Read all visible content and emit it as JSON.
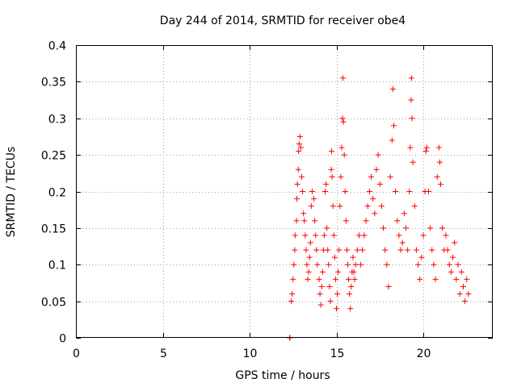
{
  "chart_data": {
    "type": "scatter",
    "title": "Day 244 of 2014, SRMTID for receiver obe4",
    "xlabel": "GPS time / hours",
    "ylabel": "SRMTID / TECUs",
    "xlim": [
      0,
      24
    ],
    "ylim": [
      0,
      0.4
    ],
    "xticks": [
      0,
      5,
      10,
      15,
      20
    ],
    "xtick_labels": [
      "0",
      "5",
      "10",
      "15",
      "20"
    ],
    "yticks": [
      0,
      0.05,
      0.1,
      0.15,
      0.2,
      0.25,
      0.3,
      0.35,
      0.4
    ],
    "ytick_labels": [
      "0",
      "0.05",
      "0.1",
      "0.15",
      "0.2",
      "0.25",
      "0.3",
      "0.35",
      "0.4"
    ],
    "grid": true,
    "marker": "plus",
    "color": "#ff0000",
    "series": [
      {
        "name": "obe4",
        "points": [
          [
            12.3,
            0.0
          ],
          [
            12.32,
            0.0
          ],
          [
            12.4,
            0.05
          ],
          [
            12.45,
            0.06
          ],
          [
            12.5,
            0.08
          ],
          [
            12.55,
            0.1
          ],
          [
            12.6,
            0.12
          ],
          [
            12.62,
            0.14
          ],
          [
            12.7,
            0.16
          ],
          [
            12.72,
            0.19
          ],
          [
            12.75,
            0.21
          ],
          [
            12.8,
            0.23
          ],
          [
            12.82,
            0.255
          ],
          [
            12.85,
            0.265
          ],
          [
            12.9,
            0.275
          ],
          [
            12.95,
            0.26
          ],
          [
            13.0,
            0.22
          ],
          [
            13.05,
            0.2
          ],
          [
            13.1,
            0.17
          ],
          [
            13.15,
            0.16
          ],
          [
            13.2,
            0.14
          ],
          [
            13.25,
            0.12
          ],
          [
            13.3,
            0.1
          ],
          [
            13.35,
            0.08
          ],
          [
            13.4,
            0.09
          ],
          [
            13.45,
            0.11
          ],
          [
            13.5,
            0.13
          ],
          [
            13.55,
            0.18
          ],
          [
            13.6,
            0.2
          ],
          [
            13.7,
            0.19
          ],
          [
            13.75,
            0.16
          ],
          [
            13.8,
            0.14
          ],
          [
            13.85,
            0.12
          ],
          [
            13.9,
            0.1
          ],
          [
            14.0,
            0.08
          ],
          [
            14.05,
            0.06
          ],
          [
            14.1,
            0.045
          ],
          [
            14.15,
            0.07
          ],
          [
            14.2,
            0.09
          ],
          [
            14.25,
            0.12
          ],
          [
            14.3,
            0.14
          ],
          [
            14.35,
            0.2
          ],
          [
            14.4,
            0.21
          ],
          [
            14.45,
            0.15
          ],
          [
            14.5,
            0.12
          ],
          [
            14.55,
            0.1
          ],
          [
            14.6,
            0.07
          ],
          [
            14.65,
            0.05
          ],
          [
            14.7,
            0.23
          ],
          [
            14.72,
            0.255
          ],
          [
            14.75,
            0.22
          ],
          [
            14.8,
            0.18
          ],
          [
            14.85,
            0.14
          ],
          [
            14.9,
            0.11
          ],
          [
            14.95,
            0.08
          ],
          [
            15.0,
            0.04
          ],
          [
            15.05,
            0.06
          ],
          [
            15.1,
            0.09
          ],
          [
            15.15,
            0.12
          ],
          [
            15.2,
            0.18
          ],
          [
            15.25,
            0.22
          ],
          [
            15.3,
            0.26
          ],
          [
            15.35,
            0.3
          ],
          [
            15.37,
            0.355
          ],
          [
            15.4,
            0.295
          ],
          [
            15.45,
            0.25
          ],
          [
            15.5,
            0.2
          ],
          [
            15.55,
            0.16
          ],
          [
            15.6,
            0.12
          ],
          [
            15.65,
            0.1
          ],
          [
            15.7,
            0.08
          ],
          [
            15.75,
            0.06
          ],
          [
            15.8,
            0.04
          ],
          [
            15.85,
            0.07
          ],
          [
            15.9,
            0.09
          ],
          [
            15.95,
            0.11
          ],
          [
            16.0,
            0.09
          ],
          [
            16.05,
            0.08
          ],
          [
            16.1,
            0.1
          ],
          [
            16.2,
            0.12
          ],
          [
            16.3,
            0.14
          ],
          [
            16.4,
            0.1
          ],
          [
            16.5,
            0.12
          ],
          [
            16.6,
            0.14
          ],
          [
            16.7,
            0.16
          ],
          [
            16.8,
            0.18
          ],
          [
            16.9,
            0.2
          ],
          [
            17.0,
            0.22
          ],
          [
            17.1,
            0.19
          ],
          [
            17.2,
            0.17
          ],
          [
            17.3,
            0.23
          ],
          [
            17.4,
            0.25
          ],
          [
            17.5,
            0.21
          ],
          [
            17.6,
            0.18
          ],
          [
            17.7,
            0.15
          ],
          [
            17.8,
            0.12
          ],
          [
            17.9,
            0.1
          ],
          [
            18.0,
            0.07
          ],
          [
            18.1,
            0.22
          ],
          [
            18.2,
            0.27
          ],
          [
            18.25,
            0.34
          ],
          [
            18.3,
            0.29
          ],
          [
            18.4,
            0.2
          ],
          [
            18.5,
            0.16
          ],
          [
            18.6,
            0.14
          ],
          [
            18.7,
            0.12
          ],
          [
            18.8,
            0.13
          ],
          [
            18.9,
            0.17
          ],
          [
            19.0,
            0.15
          ],
          [
            19.1,
            0.12
          ],
          [
            19.2,
            0.2
          ],
          [
            19.25,
            0.26
          ],
          [
            19.3,
            0.325
          ],
          [
            19.32,
            0.355
          ],
          [
            19.35,
            0.3
          ],
          [
            19.4,
            0.24
          ],
          [
            19.5,
            0.18
          ],
          [
            19.6,
            0.12
          ],
          [
            19.7,
            0.1
          ],
          [
            19.8,
            0.08
          ],
          [
            19.9,
            0.11
          ],
          [
            20.0,
            0.14
          ],
          [
            20.1,
            0.2
          ],
          [
            20.15,
            0.255
          ],
          [
            20.2,
            0.26
          ],
          [
            20.3,
            0.2
          ],
          [
            20.4,
            0.15
          ],
          [
            20.5,
            0.12
          ],
          [
            20.6,
            0.1
          ],
          [
            20.7,
            0.08
          ],
          [
            20.8,
            0.22
          ],
          [
            20.9,
            0.26
          ],
          [
            20.95,
            0.24
          ],
          [
            21.0,
            0.21
          ],
          [
            21.1,
            0.15
          ],
          [
            21.2,
            0.12
          ],
          [
            21.3,
            0.14
          ],
          [
            21.4,
            0.12
          ],
          [
            21.5,
            0.1
          ],
          [
            21.6,
            0.09
          ],
          [
            21.7,
            0.11
          ],
          [
            21.8,
            0.13
          ],
          [
            21.9,
            0.08
          ],
          [
            22.0,
            0.1
          ],
          [
            22.1,
            0.06
          ],
          [
            22.2,
            0.09
          ],
          [
            22.3,
            0.07
          ],
          [
            22.4,
            0.05
          ],
          [
            22.5,
            0.08
          ],
          [
            22.6,
            0.06
          ]
        ]
      }
    ]
  }
}
